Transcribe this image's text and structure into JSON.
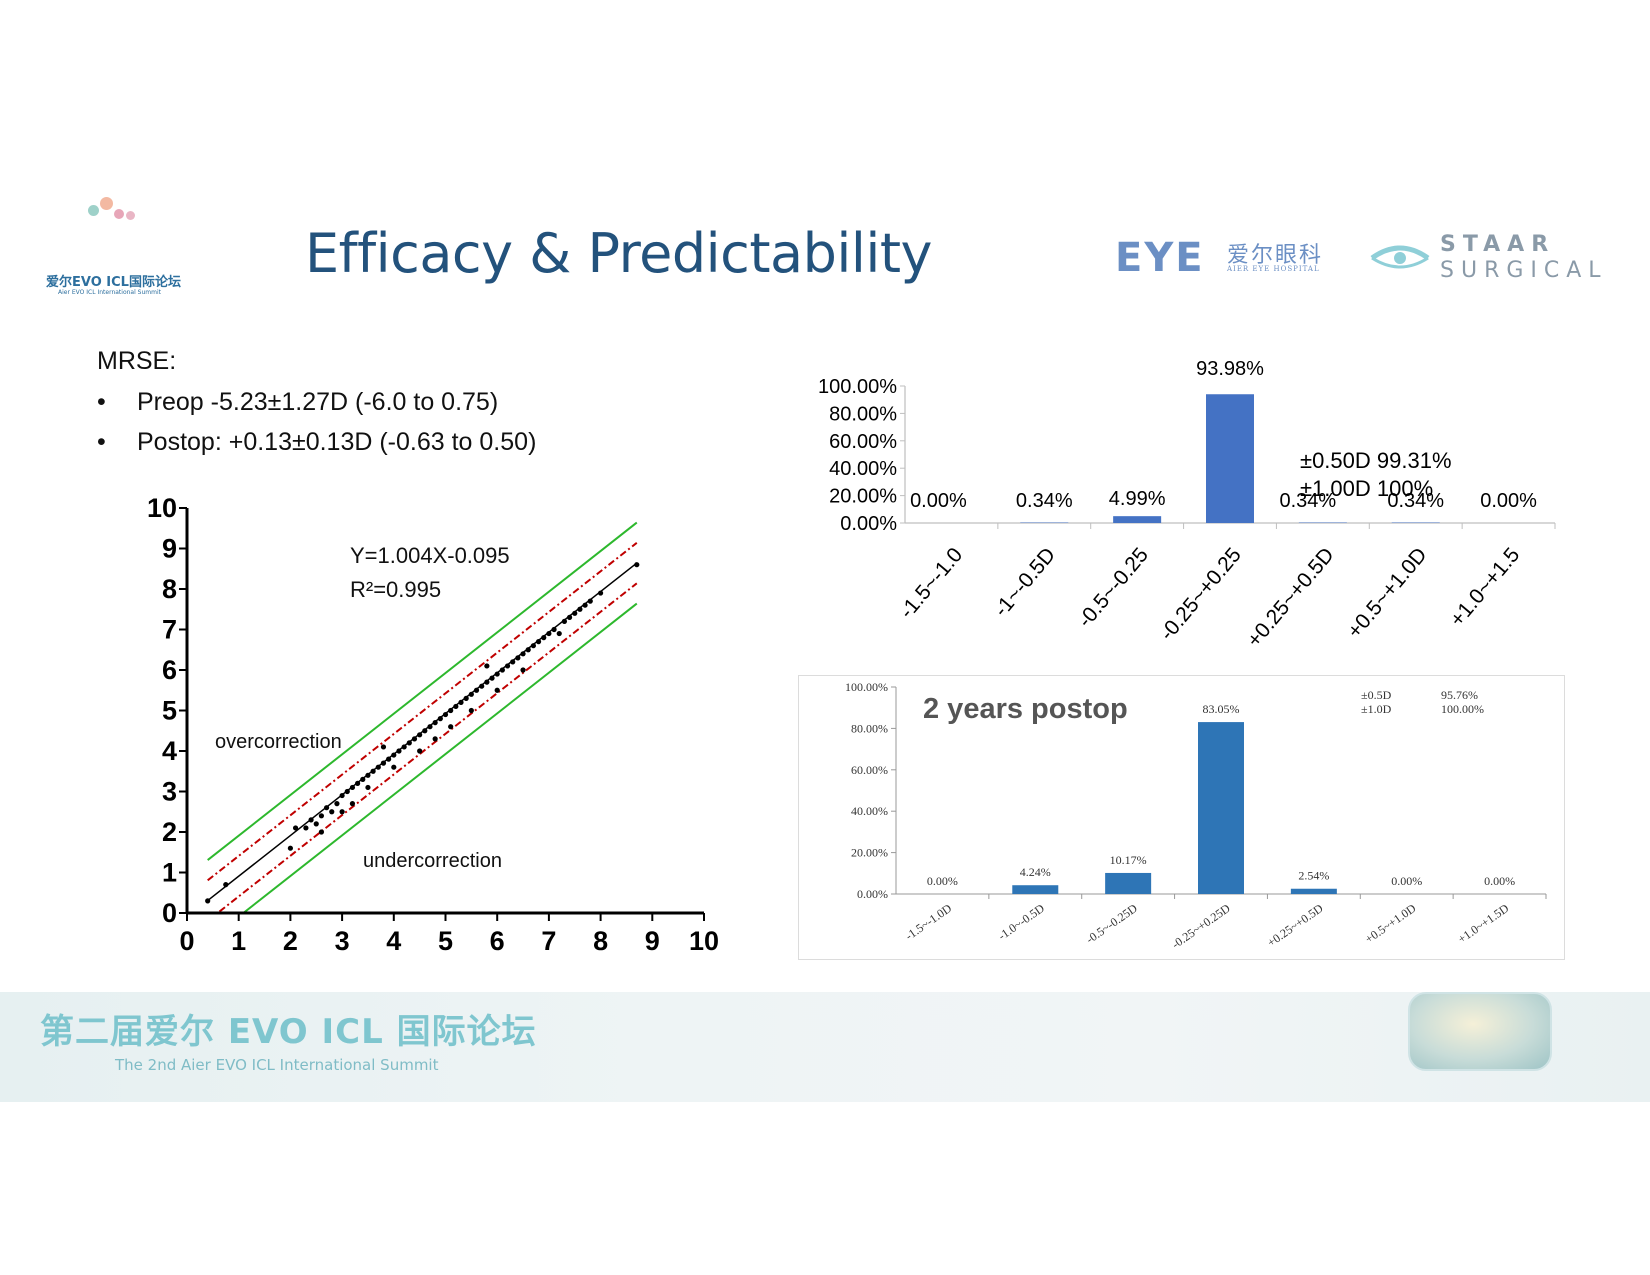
{
  "header": {
    "summit_logo_cn": "爱尔EVO ICL国际论坛",
    "summit_logo_en": "Aier EVO ICL International Summit",
    "title": "Efficacy & Predictability",
    "eye_logo_mark": "EYE",
    "eye_logo_cn": "爱尔眼科",
    "eye_logo_en": "AIER EYE HOSPITAL",
    "staar_line1": "STAAR",
    "staar_line2": "SURGICAL"
  },
  "text": {
    "mrse_label": "MRSE:",
    "bullets": [
      {
        "marker": "•",
        "text": "Preop -5.23±1.27D (-6.0 to 0.75)"
      },
      {
        "marker": "•",
        "text": "Postop: +0.13±0.13D (-0.63 to 0.50)"
      }
    ]
  },
  "footer": {
    "cn": "第二届爱尔 EVO ICL 国际论坛",
    "en": "The 2nd Aier EVO ICL International Summit"
  },
  "colors": {
    "title": "#23527c",
    "bar_top": "#4472c4",
    "bar_bottom": "#2e75b6",
    "fit_line": "#000000",
    "inner_band": "#c00000",
    "outer_band": "#2db82d"
  },
  "chart_data": [
    {
      "type": "scatter",
      "name": "predictability-scatter",
      "equation": "Y=1.004X-0.095",
      "r2_text": "R²=0.995",
      "annotations": [
        "overcorrection",
        "undercorrection"
      ],
      "xlim": [
        0,
        10
      ],
      "ylim": [
        0,
        10
      ],
      "x_ticks": [
        "0",
        "1",
        "2",
        "3",
        "4",
        "5",
        "6",
        "7",
        "8",
        "9",
        "10"
      ],
      "y_ticks": [
        "0",
        "1",
        "2",
        "3",
        "4",
        "5",
        "6",
        "7",
        "8",
        "9",
        "10"
      ],
      "regression": {
        "slope": 1.004,
        "intercept": -0.095
      },
      "inner_band_offset": 0.5,
      "outer_band_offset": 1.0,
      "x_range": [
        0.4,
        8.7
      ],
      "points": [
        [
          0.4,
          0.3
        ],
        [
          0.75,
          0.7
        ],
        [
          2.0,
          1.6
        ],
        [
          2.1,
          2.1
        ],
        [
          2.3,
          2.1
        ],
        [
          2.4,
          2.3
        ],
        [
          2.5,
          2.2
        ],
        [
          2.6,
          2.4
        ],
        [
          2.6,
          2.0
        ],
        [
          2.7,
          2.6
        ],
        [
          2.8,
          2.5
        ],
        [
          2.9,
          2.7
        ],
        [
          3.0,
          2.9
        ],
        [
          3.0,
          2.5
        ],
        [
          3.1,
          3.0
        ],
        [
          3.2,
          3.1
        ],
        [
          3.2,
          2.7
        ],
        [
          3.3,
          3.2
        ],
        [
          3.4,
          3.3
        ],
        [
          3.5,
          3.4
        ],
        [
          3.5,
          3.1
        ],
        [
          3.6,
          3.5
        ],
        [
          3.7,
          3.6
        ],
        [
          3.8,
          3.7
        ],
        [
          3.8,
          4.1
        ],
        [
          3.9,
          3.8
        ],
        [
          4.0,
          3.9
        ],
        [
          4.0,
          3.6
        ],
        [
          4.1,
          4.0
        ],
        [
          4.2,
          4.1
        ],
        [
          4.3,
          4.2
        ],
        [
          4.4,
          4.3
        ],
        [
          4.5,
          4.4
        ],
        [
          4.5,
          4.0
        ],
        [
          4.6,
          4.5
        ],
        [
          4.7,
          4.6
        ],
        [
          4.8,
          4.7
        ],
        [
          4.8,
          4.3
        ],
        [
          4.9,
          4.8
        ],
        [
          5.0,
          4.9
        ],
        [
          5.1,
          5.0
        ],
        [
          5.1,
          4.6
        ],
        [
          5.2,
          5.1
        ],
        [
          5.3,
          5.2
        ],
        [
          5.4,
          5.3
        ],
        [
          5.5,
          5.4
        ],
        [
          5.5,
          5.0
        ],
        [
          5.6,
          5.5
        ],
        [
          5.7,
          5.6
        ],
        [
          5.8,
          5.7
        ],
        [
          5.8,
          6.1
        ],
        [
          5.9,
          5.8
        ],
        [
          6.0,
          5.9
        ],
        [
          6.0,
          5.5
        ],
        [
          6.1,
          6.0
        ],
        [
          6.2,
          6.1
        ],
        [
          6.3,
          6.2
        ],
        [
          6.4,
          6.3
        ],
        [
          6.5,
          6.4
        ],
        [
          6.5,
          6.0
        ],
        [
          6.6,
          6.5
        ],
        [
          6.7,
          6.6
        ],
        [
          6.8,
          6.7
        ],
        [
          6.9,
          6.8
        ],
        [
          7.0,
          6.9
        ],
        [
          7.1,
          7.0
        ],
        [
          7.2,
          6.9
        ],
        [
          7.3,
          7.2
        ],
        [
          7.4,
          7.3
        ],
        [
          7.5,
          7.4
        ],
        [
          7.6,
          7.5
        ],
        [
          7.7,
          7.6
        ],
        [
          7.8,
          7.7
        ],
        [
          8.0,
          7.9
        ],
        [
          8.7,
          8.6
        ]
      ]
    },
    {
      "type": "bar",
      "name": "accuracy-bar-1",
      "categories": [
        "-1.5~-1.0",
        "-1~-0.5D",
        "-0.5~-0.25",
        "-0.25~+0.25",
        "+0.25~+0.5D",
        "+0.5~+1.0D",
        "+1.0~+1.5"
      ],
      "values": [
        0.0,
        0.34,
        4.99,
        93.98,
        0.34,
        0.34,
        0.0
      ],
      "value_labels": [
        "0.00%",
        "0.34%",
        "4.99%",
        "93.98%",
        "0.34%",
        "0.34%",
        "0.00%"
      ],
      "y_ticks": [
        "0.00%",
        "20.00%",
        "40.00%",
        "60.00%",
        "80.00%",
        "100.00%"
      ],
      "ylim": [
        0,
        100
      ],
      "summary": [
        {
          "label": "±0.50D",
          "value": "99.31%"
        },
        {
          "label": "±1.00D",
          "value": "100%"
        }
      ]
    },
    {
      "type": "bar",
      "name": "accuracy-bar-2yr",
      "title": "2 years postop",
      "categories": [
        "-1.5~-1.0D",
        "-1.0~-0.5D",
        "-0.5~-0.25D",
        "-0.25~+0.25D",
        "+0.25~+0.5D",
        "+0.5~+1.0D",
        "+1.0~+1.5D"
      ],
      "values": [
        0.0,
        4.24,
        10.17,
        83.05,
        2.54,
        0.0,
        0.0
      ],
      "value_labels": [
        "0.00%",
        "4.24%",
        "10.17%",
        "83.05%",
        "2.54%",
        "0.00%",
        "0.00%"
      ],
      "y_ticks": [
        "0.00%",
        "20.00%",
        "40.00%",
        "60.00%",
        "80.00%",
        "100.00%"
      ],
      "ylim": [
        0,
        100
      ],
      "summary": [
        {
          "label": "±0.5D",
          "value": "95.76%"
        },
        {
          "label": "±1.0D",
          "value": "100.00%"
        }
      ]
    }
  ]
}
